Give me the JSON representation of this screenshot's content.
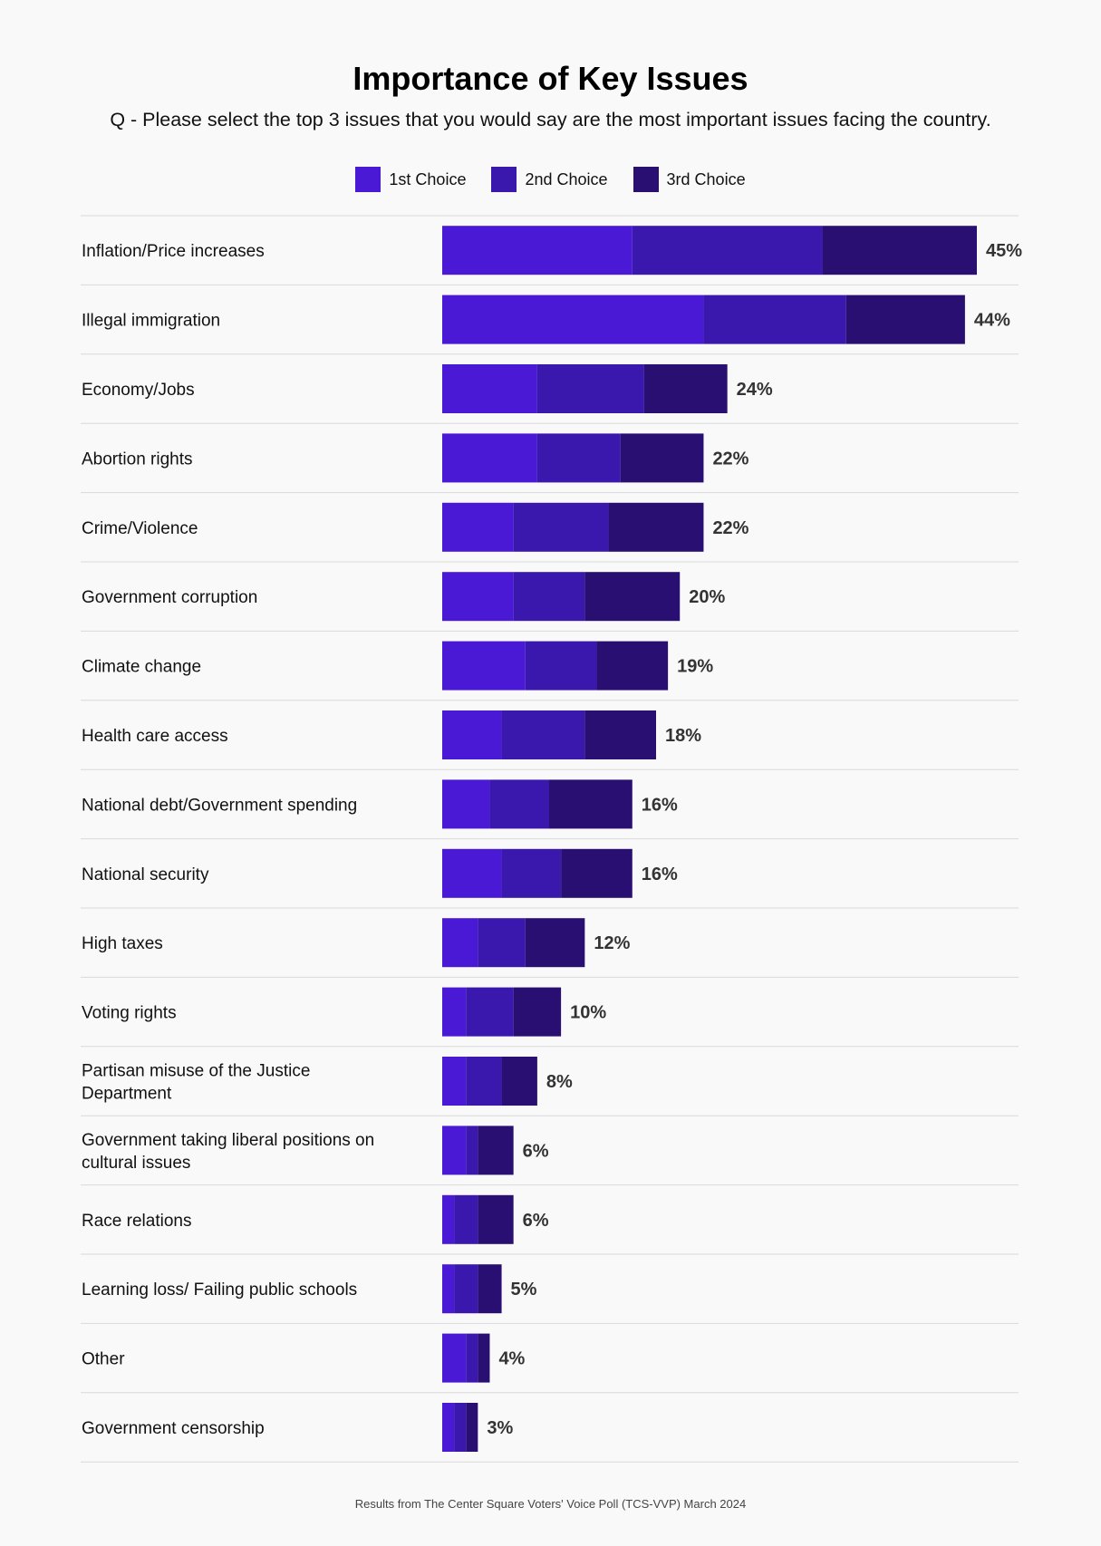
{
  "chart_data": {
    "type": "bar",
    "orientation": "horizontal",
    "stacked": true,
    "title": "Importance of Key Issues",
    "subtitle": "Q - Please select the top 3 issues that you would say are the most important issues facing the country.",
    "legend_placement": "top-center",
    "categories": [
      "Inflation/Price increases",
      "Illegal immigration",
      "Economy/Jobs",
      "Abortion rights",
      "Crime/Violence",
      "Government corruption",
      "Climate change",
      "Health care access",
      "National debt/Government spending",
      "National security",
      "High taxes",
      "Voting rights",
      "Partisan misuse of the Justice Department",
      "Government taking liberal positions on cultural issues",
      "Race relations",
      "Learning loss/ Failing public schools",
      "Other",
      "Government censorship"
    ],
    "series": [
      {
        "name": "1st Choice",
        "color": "#4a19d6",
        "values": [
          16,
          22,
          8,
          8,
          6,
          6,
          7,
          5,
          4,
          5,
          3,
          2,
          2,
          2,
          1,
          1,
          2,
          1
        ]
      },
      {
        "name": "2nd Choice",
        "color": "#3a17ad",
        "values": [
          16,
          12,
          9,
          7,
          8,
          6,
          6,
          7,
          5,
          5,
          4,
          4,
          3,
          1,
          2,
          2,
          1,
          1
        ]
      },
      {
        "name": "3rd Choice",
        "color": "#2a0f72",
        "values": [
          13,
          10,
          7,
          7,
          8,
          8,
          6,
          6,
          7,
          6,
          5,
          4,
          3,
          3,
          3,
          2,
          1,
          1
        ]
      }
    ],
    "totals": [
      45,
      44,
      24,
      22,
      22,
      20,
      19,
      18,
      16,
      16,
      12,
      10,
      8,
      6,
      6,
      5,
      4,
      3
    ],
    "total_labels": [
      "45%",
      "44%",
      "24%",
      "22%",
      "22%",
      "20%",
      "19%",
      "18%",
      "16%",
      "16%",
      "12%",
      "10%",
      "8%",
      "6%",
      "6%",
      "5%",
      "4%",
      "3%"
    ],
    "xlim": [
      0,
      45
    ],
    "grid": false
  },
  "footer": "Results from The Center Square Voters' Voice Poll (TCS-VVP) March 2024"
}
